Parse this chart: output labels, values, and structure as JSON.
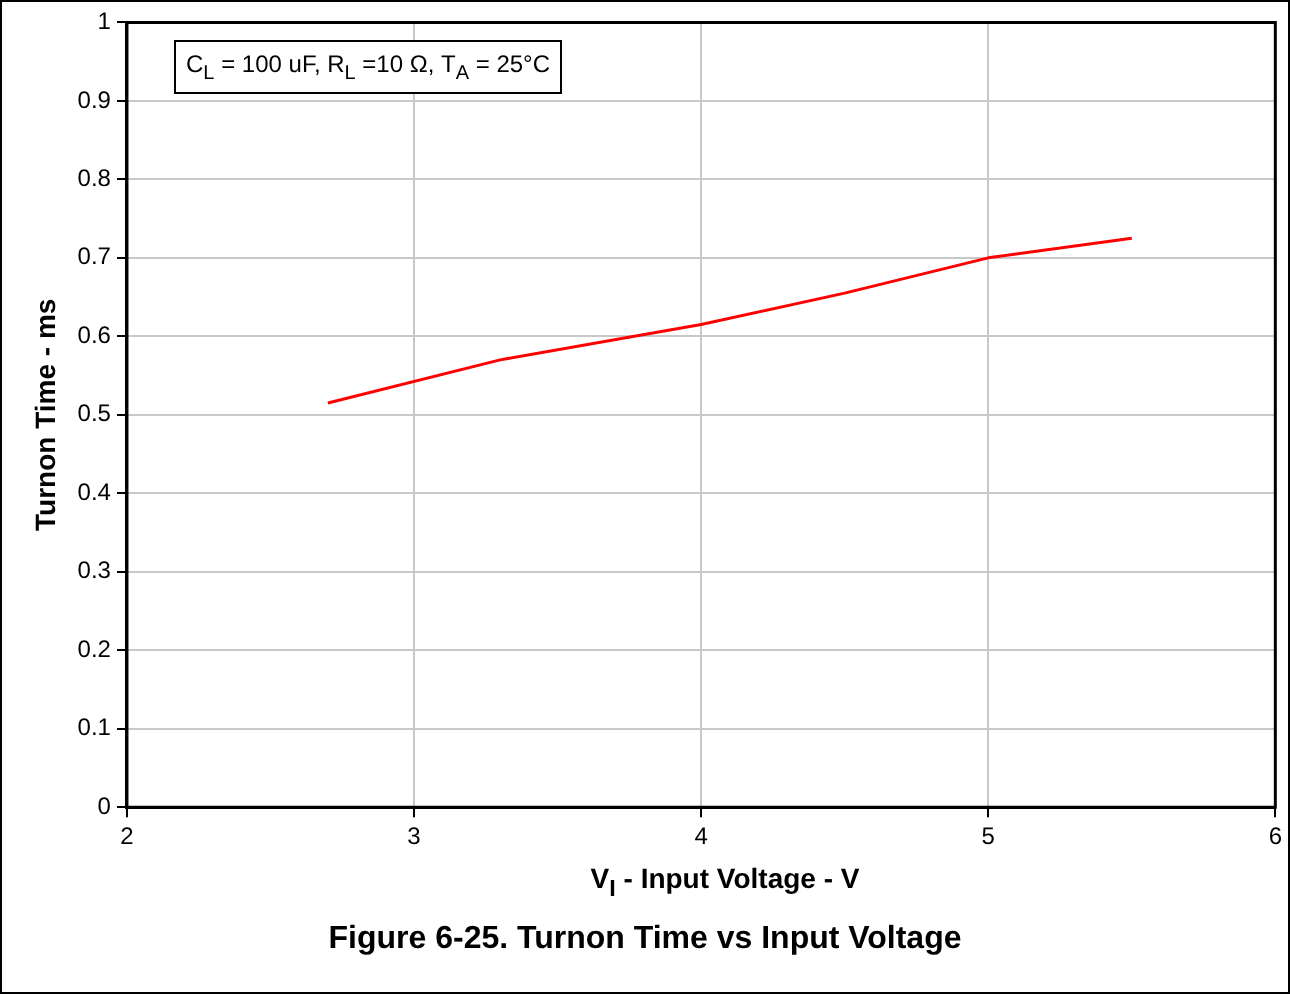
{
  "chart_data": {
    "type": "line",
    "title": "Figure 6-25. Turnon Time vs Input Voltage",
    "xlabel": "V$_{I}$ - Input Voltage - V",
    "ylabel": "Turnon Time - ms",
    "annotations": [
      "C$_{L}$ = 100 uF, R$_{L}$ =10 Ω, T$_{A}$ = 25°C"
    ],
    "x": [
      2.7,
      3.3,
      4,
      4.5,
      5,
      5.5
    ],
    "series": [
      {
        "color": "#ff0000",
        "values": [
          0.515,
          0.57,
          0.615,
          0.655,
          0.7,
          0.725
        ]
      }
    ],
    "xlim": [
      2,
      6
    ],
    "xticks": [
      2,
      3,
      4,
      5,
      6
    ],
    "ylim": [
      0,
      1
    ],
    "yticks": [
      0,
      0.1,
      0.2,
      0.3,
      0.4,
      0.5,
      0.6,
      0.7,
      0.8,
      0.9,
      1
    ],
    "grid": true,
    "legend": false,
    "marker": "none",
    "line_style": "solid"
  }
}
